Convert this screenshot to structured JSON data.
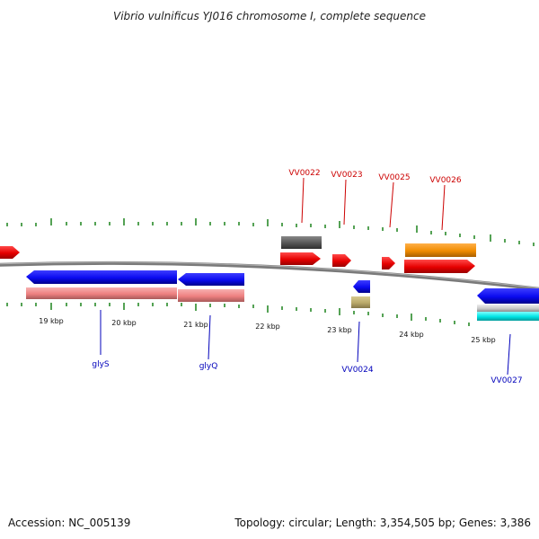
{
  "title": "Vibrio vulnificus YJ016 chromosome I, complete sequence",
  "footer": {
    "accession": "Accession: NC_005139",
    "summary": "Topology: circular; Length: 3,354,505 bp; Genes: 3,386"
  },
  "colors": {
    "backbone": "#808080",
    "tick": "#2a8a2a",
    "label_forward": "#cc0000",
    "label_reverse": "#0000bb",
    "feature_red": "#e60000",
    "feature_blue": "#0a0af0",
    "feature_pink": "#ee8080",
    "feature_gray": "#555555",
    "feature_orange": "#f08c00",
    "feature_khaki": "#b9a96a",
    "feature_silver": "#c8c8c8",
    "feature_cyan": "#00e5e5"
  },
  "scale": {
    "tick_labels": [
      "19 kbp",
      "20 kbp",
      "21 kbp",
      "22 kbp",
      "23 kbp",
      "24 kbp",
      "25 kbp"
    ]
  },
  "gene_labels_forward": [
    "VV0022",
    "VV0023",
    "VV0025",
    "VV0026"
  ],
  "gene_labels_reverse": [
    "glyS",
    "glyQ",
    "VV0024",
    "VV0027"
  ]
}
